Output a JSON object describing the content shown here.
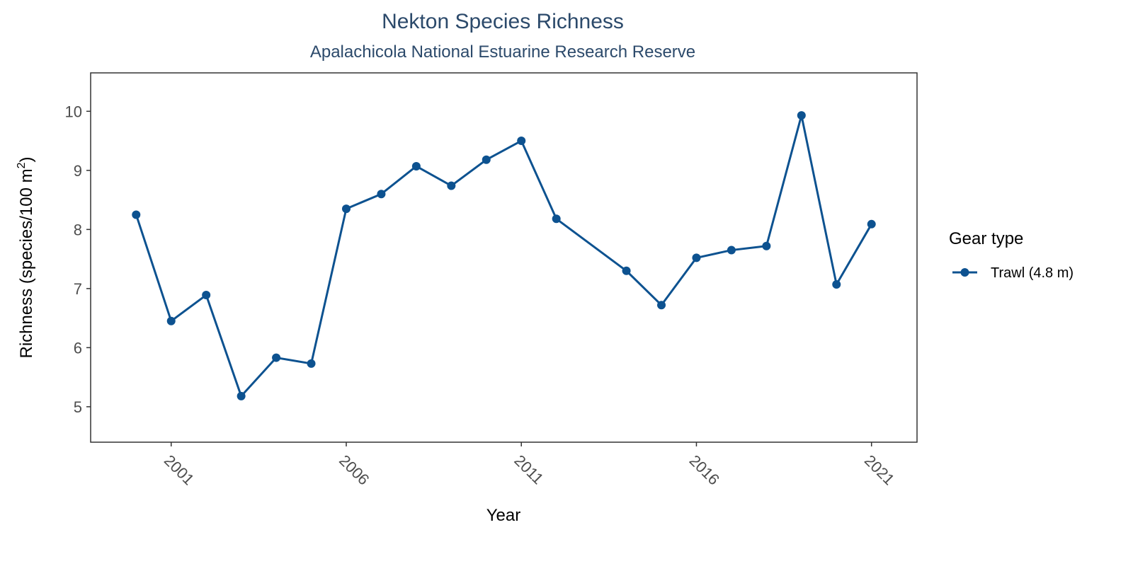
{
  "chart_data": {
    "type": "line",
    "title": "Nekton Species Richness",
    "subtitle": "Apalachicola National Estuarine Research Reserve",
    "xlabel": "Year",
    "ylabel_main": "Richness (species/100 m",
    "ylabel_sup": "2",
    "ylabel_end": ")",
    "xlim": [
      1998.7,
      2022.3
    ],
    "ylim": [
      4.4,
      10.65
    ],
    "xticks": [
      2001,
      2006,
      2011,
      2016,
      2021
    ],
    "yticks": [
      5,
      6,
      7,
      8,
      9,
      10
    ],
    "grid": false,
    "legend": {
      "title": "Gear type",
      "position": "right"
    },
    "series": [
      {
        "name": "Trawl (4.8 m)",
        "color": "#0d5290",
        "x": [
          2000,
          2001,
          2002,
          2003,
          2004,
          2005,
          2006,
          2007,
          2008,
          2009,
          2010,
          2011,
          2012,
          2014,
          2015,
          2016,
          2017,
          2018,
          2019,
          2020,
          2021
        ],
        "y": [
          8.25,
          6.45,
          6.89,
          5.18,
          5.83,
          5.73,
          8.35,
          8.6,
          9.07,
          8.74,
          9.18,
          9.5,
          8.18,
          7.3,
          6.72,
          7.52,
          7.65,
          7.72,
          9.93,
          7.07,
          8.09
        ]
      }
    ]
  }
}
